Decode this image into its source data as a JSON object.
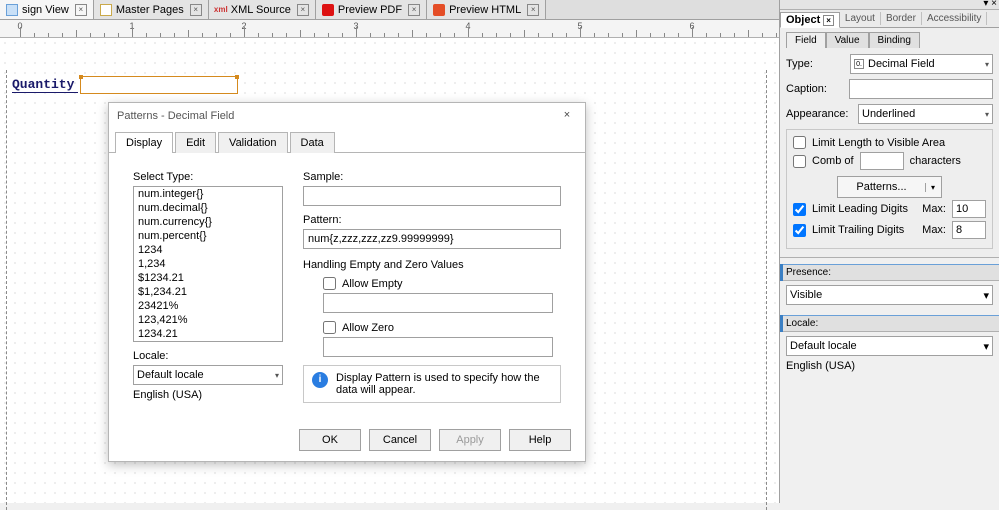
{
  "tabs": [
    {
      "label": "sign View",
      "icon": "layout",
      "active": true
    },
    {
      "label": "Master Pages",
      "icon": "page",
      "active": false
    },
    {
      "label": "XML Source",
      "icon": "xml",
      "active": false
    },
    {
      "label": "Preview PDF",
      "icon": "pdf",
      "active": false
    },
    {
      "label": "Preview HTML",
      "icon": "html",
      "active": false
    }
  ],
  "ruler": {
    "marks": [
      0,
      1,
      2,
      3,
      4,
      5,
      6
    ]
  },
  "form": {
    "label": "Quantity"
  },
  "dialog": {
    "title": "Patterns - Decimal Field",
    "tabs": [
      "Display",
      "Edit",
      "Validation",
      "Data"
    ],
    "active_tab": 0,
    "select_type_label": "Select Type:",
    "types": [
      "num.integer{}",
      "num.decimal{}",
      "num.currency{}",
      "num.percent{}",
      "1234",
      "1,234",
      " $1234.21",
      " $1,234.21",
      "23421%",
      "123,421%",
      "1234.21",
      "1,234.21"
    ],
    "locale_label": "Locale:",
    "locale_value": "Default locale",
    "locale_display": "English (USA)",
    "sample_label": "Sample:",
    "sample_value": "",
    "pattern_label": "Pattern:",
    "pattern_value": "num{z,zzz,zzz,zz9.99999999}",
    "handling_label": "Handling Empty and Zero Values",
    "allow_empty_label": "Allow Empty",
    "allow_zero_label": "Allow Zero",
    "note": "Display Pattern is used to specify how the data will appear.",
    "buttons": {
      "ok": "OK",
      "cancel": "Cancel",
      "apply": "Apply",
      "help": "Help"
    }
  },
  "side": {
    "panel_tabs": [
      "Object",
      "Layout",
      "Border",
      "Accessibility"
    ],
    "active_panel": 0,
    "subtabs": [
      "Field",
      "Value",
      "Binding"
    ],
    "active_sub": 0,
    "type_label": "Type:",
    "type_value": "Decimal Field",
    "caption_label": "Caption:",
    "caption_value": "",
    "appearance_label": "Appearance:",
    "appearance_value": "Underlined",
    "limit_length_label": "Limit Length to Visible Area",
    "comb_of_label": "Comb of",
    "characters_label": "characters",
    "patterns_btn": "Patterns...",
    "limit_leading_label": "Limit Leading Digits",
    "limit_leading_max": "10",
    "limit_trailing_label": "Limit Trailing Digits",
    "limit_trailing_max": "8",
    "max_label": "Max:",
    "presence_label": "Presence:",
    "presence_value": "Visible",
    "locale_label": "Locale:",
    "locale_value": "Default locale",
    "locale_display": "English (USA)"
  }
}
